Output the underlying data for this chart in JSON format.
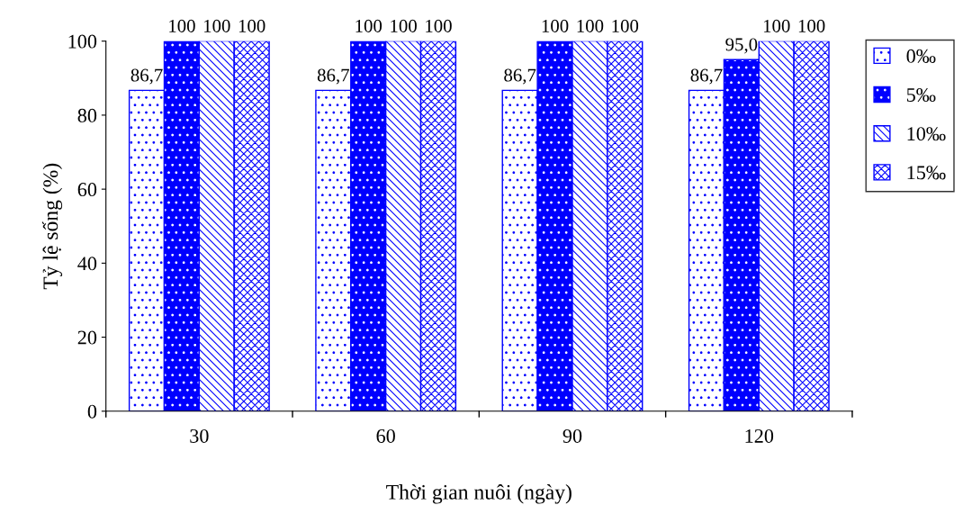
{
  "chart_data": {
    "type": "bar",
    "xlabel": "Thời gian nuôi (ngày)",
    "ylabel": "Tỷ lệ sống (%)",
    "categories": [
      "30",
      "60",
      "90",
      "120"
    ],
    "series": [
      {
        "name": "0‰",
        "color": "#0000ff",
        "values": [
          86.7,
          86.7,
          86.7,
          86.7
        ],
        "value_labels": [
          "86,7",
          "86,7",
          "86,7",
          "86,7"
        ]
      },
      {
        "name": "5‰",
        "color": "#0000ff",
        "values": [
          100,
          100,
          100,
          95.0
        ],
        "value_labels": [
          "100",
          "100",
          "100",
          "95,0"
        ]
      },
      {
        "name": "10‰",
        "color": "#0000ff",
        "values": [
          100,
          100,
          100,
          100
        ],
        "value_labels": [
          "100",
          "100",
          "100",
          "100"
        ]
      },
      {
        "name": "15‰",
        "color": "#0000ff",
        "values": [
          100,
          100,
          100,
          100
        ],
        "value_labels": [
          "100",
          "100",
          "100",
          "100"
        ]
      }
    ],
    "ylim": [
      0,
      100
    ],
    "yticks": [
      0,
      20,
      40,
      60,
      80,
      100
    ],
    "grid": false,
    "legend": "right"
  }
}
